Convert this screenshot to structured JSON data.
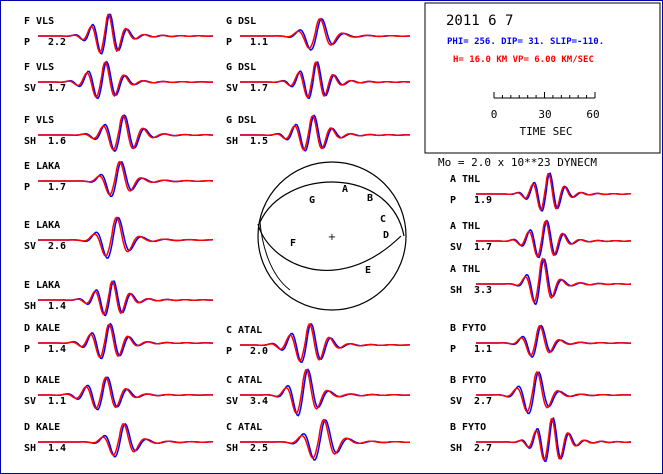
{
  "chart_data": {
    "type": "line",
    "header": {
      "date": "2011  6  7",
      "mechanism": "PHI= 256. DIP= 31. SLIP=-110.",
      "depth_velocity": "H= 16.0 KM  VP= 6.00 KM/SEC",
      "moment": "Mo =  2.0 x 10**23 DYNECM"
    },
    "time_scale": {
      "ticks": [
        "0",
        "30",
        "60"
      ],
      "label": "TIME  SEC"
    },
    "colors": {
      "observed": "#0000ff",
      "synthetic": "#ff0000"
    },
    "waveforms": [
      {
        "station": "F VLS",
        "phase": "P",
        "amp": "2.2",
        "col": 0,
        "row": 0
      },
      {
        "station": "F VLS",
        "phase": "SV",
        "amp": "1.7",
        "col": 0,
        "row": 1
      },
      {
        "station": "F VLS",
        "phase": "SH",
        "amp": "1.6",
        "col": 0,
        "row": 2
      },
      {
        "station": "E LAKA",
        "phase": "P",
        "amp": "1.7",
        "col": 0,
        "row": 3
      },
      {
        "station": "E LAKA",
        "phase": "SV",
        "amp": "2.6",
        "col": 0,
        "row": 4
      },
      {
        "station": "E LAKA",
        "phase": "SH",
        "amp": "1.4",
        "col": 0,
        "row": 5
      },
      {
        "station": "D KALE",
        "phase": "P",
        "amp": "1.4",
        "col": 0,
        "row": 6
      },
      {
        "station": "D KALE",
        "phase": "SV",
        "amp": "1.1",
        "col": 0,
        "row": 7
      },
      {
        "station": "D KALE",
        "phase": "SH",
        "amp": "1.4",
        "col": 0,
        "row": 8
      },
      {
        "station": "G DSL",
        "phase": "P",
        "amp": "1.1",
        "col": 1,
        "row": 0
      },
      {
        "station": "G DSL",
        "phase": "SV",
        "amp": "1.7",
        "col": 1,
        "row": 1
      },
      {
        "station": "G DSL",
        "phase": "SH",
        "amp": "1.5",
        "col": 1,
        "row": 2
      },
      {
        "station": "C ATAL",
        "phase": "P",
        "amp": "2.0",
        "col": 1,
        "row": 6
      },
      {
        "station": "C ATAL",
        "phase": "SV",
        "amp": "3.4",
        "col": 1,
        "row": 7
      },
      {
        "station": "C ATAL",
        "phase": "SH",
        "amp": "2.5",
        "col": 1,
        "row": 8
      },
      {
        "station": "A THL",
        "phase": "P",
        "amp": "1.9",
        "col": 2,
        "row": 3
      },
      {
        "station": "A THL",
        "phase": "SV",
        "amp": "1.7",
        "col": 2,
        "row": 4
      },
      {
        "station": "A THL",
        "phase": "SH",
        "amp": "3.3",
        "col": 2,
        "row": 5
      },
      {
        "station": "B FYTO",
        "phase": "P",
        "amp": "1.1",
        "col": 2,
        "row": 6
      },
      {
        "station": "B FYTO",
        "phase": "SV",
        "amp": "2.7",
        "col": 2,
        "row": 7
      },
      {
        "station": "B FYTO",
        "phase": "SH",
        "amp": "2.7",
        "col": 2,
        "row": 8
      }
    ],
    "focal_sphere_labels": [
      "G",
      "A",
      "B",
      "C",
      "D",
      "F",
      "E"
    ]
  }
}
